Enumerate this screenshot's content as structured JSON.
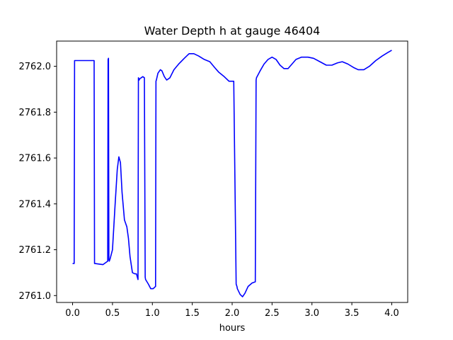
{
  "chart_data": {
    "type": "line",
    "title": "Water Depth h at gauge 46404",
    "xlabel": "hours",
    "ylabel": "",
    "xlim": [
      -0.2,
      4.2
    ],
    "ylim": [
      2760.97,
      2762.11
    ],
    "x_ticks": [
      0.0,
      0.5,
      1.0,
      1.5,
      2.0,
      2.5,
      3.0,
      3.5,
      4.0
    ],
    "x_tick_labels": [
      "0.0",
      "0.5",
      "1.0",
      "1.5",
      "2.0",
      "2.5",
      "3.0",
      "3.5",
      "4.0"
    ],
    "y_ticks": [
      2761.0,
      2761.2,
      2761.4,
      2761.6,
      2761.8,
      2762.0
    ],
    "y_tick_labels": [
      "2761.0",
      "2761.2",
      "2761.4",
      "2761.6",
      "2761.8",
      "2762.0"
    ],
    "line_color": "#0000ff",
    "grid": false,
    "series": [
      {
        "x": [
          0.0,
          0.02,
          0.025,
          0.27,
          0.275,
          0.38,
          0.42,
          0.44,
          0.445,
          0.45,
          0.455,
          0.46,
          0.47,
          0.5,
          0.53,
          0.56,
          0.58,
          0.6,
          0.62,
          0.65,
          0.68,
          0.7,
          0.72,
          0.75,
          0.78,
          0.8,
          0.82,
          0.825,
          0.835,
          0.84,
          0.86,
          0.88,
          0.9,
          0.91,
          0.915,
          0.95,
          0.98,
          1.01,
          1.04,
          1.045,
          1.05,
          1.07,
          1.1,
          1.12,
          1.15,
          1.18,
          1.22,
          1.27,
          1.33,
          1.4,
          1.46,
          1.52,
          1.58,
          1.65,
          1.72,
          1.78,
          1.83,
          1.9,
          1.96,
          2.02,
          2.05,
          2.06,
          2.065,
          2.1,
          2.13,
          2.16,
          2.2,
          2.25,
          2.29,
          2.3,
          2.305,
          2.35,
          2.4,
          2.45,
          2.5,
          2.55,
          2.6,
          2.65,
          2.7,
          2.75,
          2.8,
          2.87,
          2.95,
          3.02,
          3.1,
          3.18,
          3.25,
          3.32,
          3.38,
          3.45,
          3.52,
          3.58,
          3.65,
          3.72,
          3.8,
          3.88,
          3.95,
          4.0
        ],
        "y": [
          2761.14,
          2761.14,
          2762.025,
          2762.025,
          2761.14,
          2761.135,
          2761.145,
          2761.15,
          2762.03,
          2762.035,
          2761.155,
          2761.15,
          2761.16,
          2761.2,
          2761.38,
          2761.55,
          2761.605,
          2761.58,
          2761.45,
          2761.33,
          2761.3,
          2761.25,
          2761.17,
          2761.1,
          2761.095,
          2761.095,
          2761.07,
          2761.95,
          2761.94,
          2761.945,
          2761.95,
          2761.955,
          2761.95,
          2761.08,
          2761.07,
          2761.05,
          2761.03,
          2761.03,
          2761.04,
          2761.935,
          2761.94,
          2761.97,
          2761.985,
          2761.98,
          2761.955,
          2761.94,
          2761.95,
          2761.985,
          2762.01,
          2762.035,
          2762.055,
          2762.055,
          2762.045,
          2762.03,
          2762.02,
          2761.995,
          2761.975,
          2761.955,
          2761.935,
          2761.935,
          2761.05,
          2761.04,
          2761.03,
          2761.005,
          2760.995,
          2761.01,
          2761.04,
          2761.055,
          2761.06,
          2761.94,
          2761.95,
          2761.98,
          2762.01,
          2762.03,
          2762.04,
          2762.03,
          2762.005,
          2761.99,
          2761.99,
          2762.01,
          2762.03,
          2762.04,
          2762.04,
          2762.035,
          2762.02,
          2762.005,
          2762.005,
          2762.015,
          2762.02,
          2762.01,
          2761.995,
          2761.985,
          2761.985,
          2762.0,
          2762.025,
          2762.045,
          2762.06,
          2762.07
        ]
      }
    ]
  }
}
